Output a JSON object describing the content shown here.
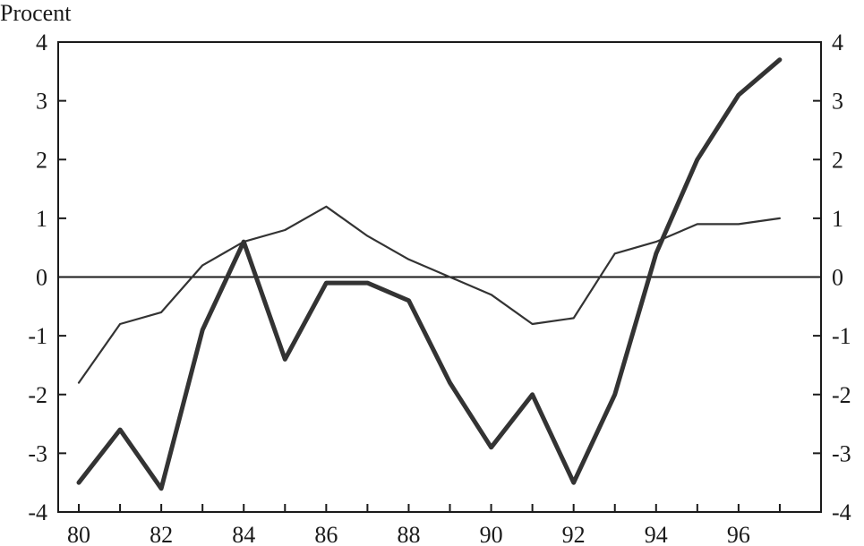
{
  "chart_data": {
    "type": "line",
    "ylabel": "Procent",
    "x": [
      80,
      81,
      82,
      83,
      84,
      85,
      86,
      87,
      88,
      89,
      90,
      91,
      92,
      93,
      94,
      95,
      96,
      97
    ],
    "x_tick_labels": [
      "80",
      "82",
      "84",
      "86",
      "88",
      "90",
      "92",
      "94",
      "96"
    ],
    "x_tick_values": [
      80,
      82,
      84,
      86,
      88,
      90,
      92,
      94,
      96
    ],
    "y_tick_labels": [
      "4",
      "3",
      "2",
      "1",
      "0",
      "-1",
      "-2",
      "-3",
      "-4"
    ],
    "y_tick_values": [
      4,
      3,
      2,
      1,
      0,
      -1,
      -2,
      -3,
      -4
    ],
    "xlim": [
      79.5,
      98
    ],
    "ylim": [
      -4,
      4
    ],
    "secondary_y_axis": true,
    "zero_line": true,
    "grid": false,
    "legend": "none",
    "series": [
      {
        "style": "thin",
        "color": "#333333",
        "values": [
          -1.8,
          -0.8,
          -0.6,
          0.2,
          0.6,
          0.8,
          1.2,
          0.7,
          0.3,
          0.0,
          -0.3,
          -0.8,
          -0.7,
          0.4,
          0.6,
          0.9,
          0.9,
          1.0
        ]
      },
      {
        "style": "thick",
        "color": "#333333",
        "values": [
          -3.5,
          -2.6,
          -3.6,
          -0.9,
          0.6,
          -1.4,
          -0.1,
          -0.1,
          -0.4,
          -1.8,
          -2.9,
          -2.0,
          -3.5,
          -2.0,
          0.4,
          2.0,
          3.1,
          3.7
        ]
      }
    ]
  }
}
